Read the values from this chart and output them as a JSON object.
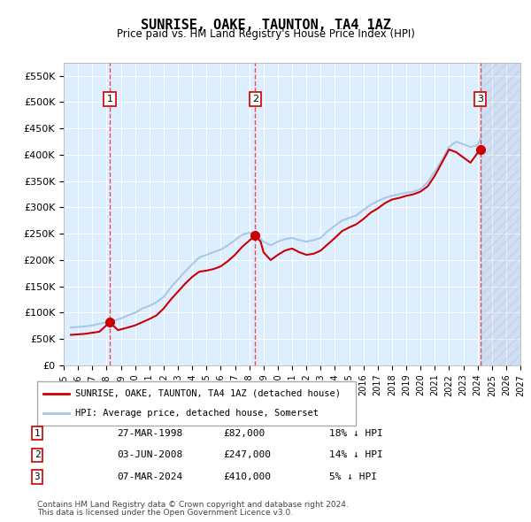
{
  "title": "SUNRISE, OAKE, TAUNTON, TA4 1AZ",
  "subtitle": "Price paid vs. HM Land Registry's House Price Index (HPI)",
  "xlabel": "",
  "ylabel": "",
  "ylim": [
    0,
    575000
  ],
  "yticks": [
    0,
    50000,
    100000,
    150000,
    200000,
    250000,
    300000,
    350000,
    400000,
    450000,
    500000,
    550000
  ],
  "ytick_labels": [
    "£0",
    "£50K",
    "£100K",
    "£150K",
    "£200K",
    "£250K",
    "£300K",
    "£350K",
    "£400K",
    "£450K",
    "£500K",
    "£550K"
  ],
  "xlim_start": 1995.5,
  "xlim_end": 2027.0,
  "xticks": [
    1995,
    1996,
    1997,
    1998,
    1999,
    2000,
    2001,
    2002,
    2003,
    2004,
    2005,
    2006,
    2007,
    2008,
    2009,
    2010,
    2011,
    2012,
    2013,
    2014,
    2015,
    2016,
    2017,
    2018,
    2019,
    2020,
    2021,
    2022,
    2023,
    2024,
    2025,
    2026,
    2027
  ],
  "hpi_line_color": "#a8c8e8",
  "price_line_color": "#cc0000",
  "marker_color": "#cc0000",
  "dot_color": "#cc0000",
  "legend_red": "SUNRISE, OAKE, TAUNTON, TA4 1AZ (detached house)",
  "legend_blue": "HPI: Average price, detached house, Somerset",
  "transactions": [
    {
      "num": 1,
      "date": "27-MAR-1998",
      "price": 82000,
      "pct": "18%",
      "direction": "↓",
      "year": 1998.23
    },
    {
      "num": 2,
      "date": "03-JUN-2008",
      "price": 247000,
      "pct": "14%",
      "direction": "↓",
      "year": 2008.42
    },
    {
      "num": 3,
      "date": "07-MAR-2024",
      "price": 410000,
      "pct": "5%",
      "direction": "↓",
      "year": 2024.18
    }
  ],
  "footer_line1": "Contains HM Land Registry data © Crown copyright and database right 2024.",
  "footer_line2": "This data is licensed under the Open Government Licence v3.0.",
  "background_plot": "#ddeeff",
  "hatch_color": "#aaaacc",
  "future_start": 2024.18,
  "hpi_data": {
    "years": [
      1995.5,
      1996.0,
      1996.5,
      1997.0,
      1997.5,
      1998.0,
      1998.5,
      1999.0,
      1999.5,
      2000.0,
      2000.5,
      2001.0,
      2001.5,
      2002.0,
      2002.5,
      2003.0,
      2003.5,
      2004.0,
      2004.5,
      2005.0,
      2005.5,
      2006.0,
      2006.5,
      2007.0,
      2007.5,
      2008.0,
      2008.5,
      2009.0,
      2009.5,
      2010.0,
      2010.5,
      2011.0,
      2011.5,
      2012.0,
      2012.5,
      2013.0,
      2013.5,
      2014.0,
      2014.5,
      2015.0,
      2015.5,
      2016.0,
      2016.5,
      2017.0,
      2017.5,
      2018.0,
      2018.5,
      2019.0,
      2019.5,
      2020.0,
      2020.5,
      2021.0,
      2021.5,
      2022.0,
      2022.5,
      2023.0,
      2023.5,
      2024.0,
      2024.18
    ],
    "values": [
      72000,
      73000,
      74000,
      76000,
      79000,
      82000,
      85000,
      89000,
      95000,
      100000,
      108000,
      113000,
      120000,
      130000,
      148000,
      163000,
      178000,
      192000,
      205000,
      210000,
      215000,
      220000,
      228000,
      238000,
      248000,
      252000,
      248000,
      235000,
      228000,
      235000,
      240000,
      242000,
      238000,
      235000,
      238000,
      242000,
      255000,
      265000,
      275000,
      280000,
      285000,
      295000,
      305000,
      312000,
      318000,
      322000,
      325000,
      328000,
      330000,
      335000,
      348000,
      368000,
      390000,
      415000,
      425000,
      420000,
      415000,
      418000,
      430000
    ]
  },
  "price_data": {
    "years": [
      1995.5,
      1996.0,
      1996.5,
      1997.0,
      1997.5,
      1998.23,
      1998.8,
      1999.5,
      2000.0,
      2000.5,
      2001.0,
      2001.5,
      2002.0,
      2002.5,
      2003.0,
      2003.5,
      2004.0,
      2004.5,
      2005.0,
      2005.5,
      2006.0,
      2006.5,
      2007.0,
      2007.5,
      2008.42,
      2008.8,
      2009.0,
      2009.5,
      2010.0,
      2010.5,
      2011.0,
      2011.5,
      2012.0,
      2012.5,
      2013.0,
      2013.5,
      2014.0,
      2014.5,
      2015.0,
      2015.5,
      2016.0,
      2016.5,
      2017.0,
      2017.5,
      2018.0,
      2018.5,
      2019.0,
      2019.5,
      2020.0,
      2020.5,
      2021.0,
      2021.5,
      2022.0,
      2022.5,
      2023.0,
      2023.5,
      2024.18
    ],
    "values": [
      58000,
      59000,
      60000,
      62000,
      64000,
      82000,
      67000,
      72000,
      76000,
      82000,
      88000,
      95000,
      108000,
      125000,
      140000,
      155000,
      168000,
      178000,
      180000,
      183000,
      188000,
      198000,
      210000,
      225000,
      247000,
      235000,
      215000,
      200000,
      210000,
      218000,
      222000,
      215000,
      210000,
      212000,
      218000,
      230000,
      242000,
      255000,
      262000,
      268000,
      278000,
      290000,
      298000,
      308000,
      315000,
      318000,
      322000,
      325000,
      330000,
      340000,
      360000,
      385000,
      410000,
      405000,
      395000,
      385000,
      410000
    ]
  }
}
